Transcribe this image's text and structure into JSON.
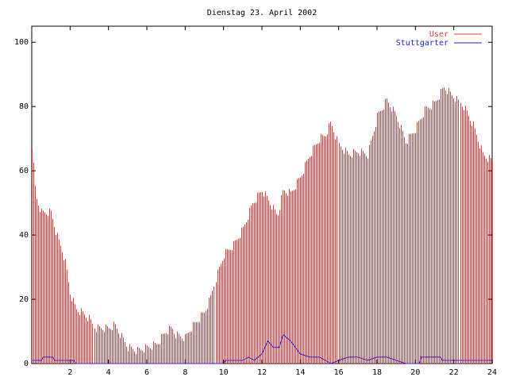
{
  "chart_data": {
    "type": "bar",
    "title": "Dienstag 23. April 2002",
    "xlabel": "",
    "ylabel": "",
    "xlim": [
      0,
      24
    ],
    "ylim": [
      0,
      105
    ],
    "xticks": [
      2,
      4,
      6,
      8,
      10,
      12,
      14,
      16,
      18,
      20,
      22,
      24
    ],
    "yticks": [
      0,
      20,
      40,
      60,
      80,
      100
    ],
    "legend_position": "top-right",
    "grid": false,
    "colors": {
      "user": "#e03c3c",
      "stuttgarter": "#1c1ce0"
    },
    "series": [
      {
        "name": "User",
        "style": "impulses",
        "interval_hours": 0.0833,
        "anchors": [
          [
            0.0,
            68
          ],
          [
            0.2,
            52
          ],
          [
            0.5,
            47
          ],
          [
            1.0,
            47
          ],
          [
            1.3,
            40
          ],
          [
            1.6,
            35
          ],
          [
            1.8,
            30
          ],
          [
            2.0,
            22
          ],
          [
            2.3,
            17
          ],
          [
            2.6,
            16
          ],
          [
            3.0,
            14
          ],
          [
            3.3,
            11
          ],
          [
            4.0,
            11
          ],
          [
            4.3,
            12
          ],
          [
            4.6,
            9
          ],
          [
            5.0,
            5
          ],
          [
            5.5,
            4
          ],
          [
            6.0,
            5
          ],
          [
            6.5,
            6
          ],
          [
            7.0,
            10
          ],
          [
            7.3,
            11
          ],
          [
            7.5,
            9
          ],
          [
            8.0,
            8
          ],
          [
            8.3,
            11
          ],
          [
            8.6,
            13
          ],
          [
            9.0,
            16
          ],
          [
            9.3,
            20
          ],
          [
            9.6,
            27
          ],
          [
            10.0,
            34
          ],
          [
            10.5,
            37
          ],
          [
            11.0,
            42
          ],
          [
            11.5,
            50
          ],
          [
            12.0,
            54
          ],
          [
            12.5,
            49
          ],
          [
            12.8,
            46
          ],
          [
            13.1,
            54
          ],
          [
            13.5,
            53
          ],
          [
            14.0,
            58
          ],
          [
            14.5,
            65
          ],
          [
            15.0,
            70
          ],
          [
            15.3,
            71
          ],
          [
            15.6,
            75
          ],
          [
            16.0,
            68
          ],
          [
            16.5,
            65
          ],
          [
            17.0,
            66
          ],
          [
            17.5,
            65
          ],
          [
            18.0,
            77
          ],
          [
            18.5,
            82
          ],
          [
            19.0,
            77
          ],
          [
            19.5,
            69
          ],
          [
            20.0,
            73
          ],
          [
            20.5,
            79
          ],
          [
            21.0,
            81
          ],
          [
            21.5,
            86
          ],
          [
            22.0,
            83
          ],
          [
            22.5,
            80
          ],
          [
            23.0,
            74
          ],
          [
            23.5,
            65
          ],
          [
            24.0,
            63
          ]
        ]
      },
      {
        "name": "Stuttgarter",
        "style": "line",
        "points": [
          [
            0.0,
            1
          ],
          [
            0.5,
            1
          ],
          [
            0.6,
            2
          ],
          [
            1.1,
            2
          ],
          [
            1.2,
            1
          ],
          [
            2.2,
            1
          ],
          [
            2.3,
            0
          ],
          [
            10.0,
            0
          ],
          [
            10.1,
            1
          ],
          [
            11.0,
            1
          ],
          [
            11.3,
            2
          ],
          [
            11.6,
            1
          ],
          [
            12.0,
            3
          ],
          [
            12.3,
            7
          ],
          [
            12.6,
            5
          ],
          [
            12.9,
            5
          ],
          [
            13.1,
            9
          ],
          [
            13.5,
            7
          ],
          [
            14.0,
            3
          ],
          [
            14.5,
            2
          ],
          [
            15.0,
            2
          ],
          [
            15.3,
            1
          ],
          [
            15.6,
            0
          ],
          [
            16.0,
            1
          ],
          [
            16.5,
            2
          ],
          [
            17.0,
            2
          ],
          [
            17.5,
            1
          ],
          [
            18.0,
            2
          ],
          [
            18.5,
            2
          ],
          [
            19.0,
            1
          ],
          [
            19.5,
            0
          ],
          [
            20.2,
            0
          ],
          [
            20.3,
            2
          ],
          [
            21.3,
            2
          ],
          [
            21.4,
            1
          ],
          [
            24.0,
            1
          ]
        ]
      }
    ]
  }
}
